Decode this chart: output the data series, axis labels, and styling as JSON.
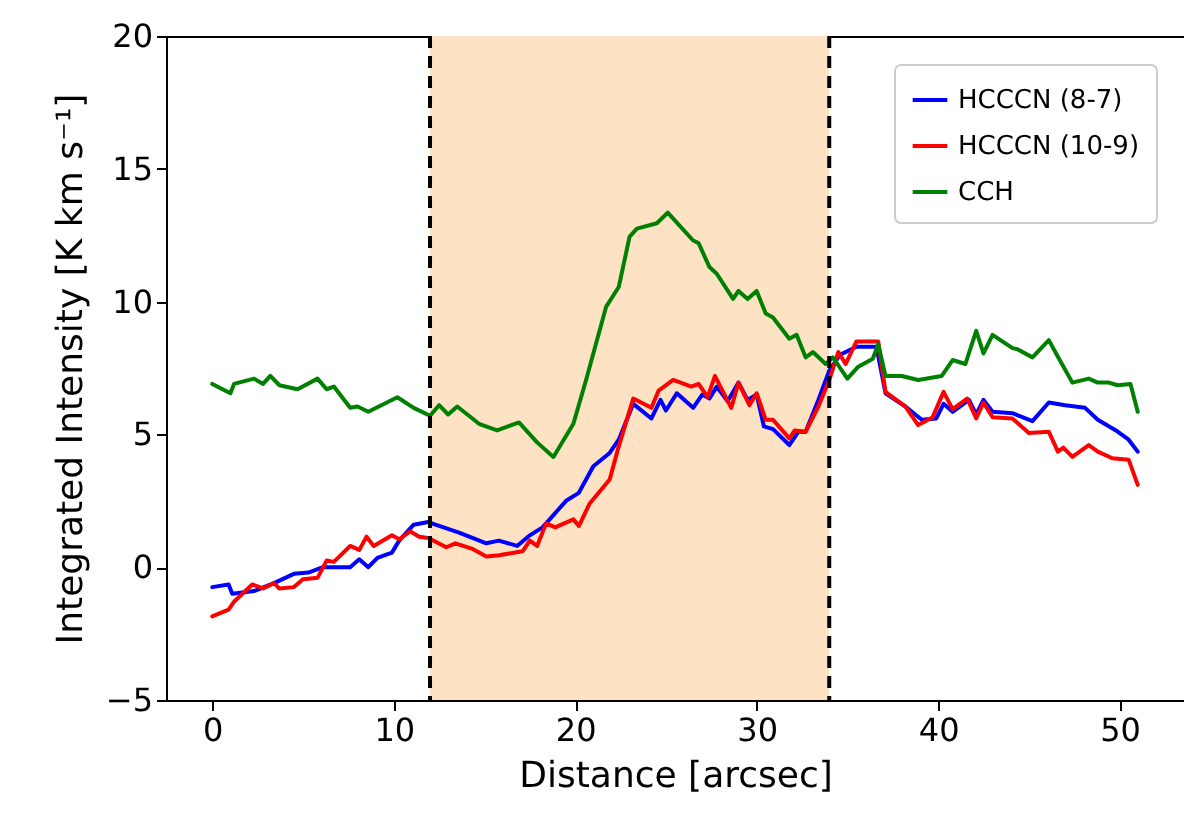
{
  "chart_data": {
    "type": "line",
    "xlabel": "Distance [arcsec]",
    "ylabel": "Integrated Intensity [K km s⁻¹]",
    "xlim": [
      -2.55,
      53.55
    ],
    "xticks": [
      0,
      10,
      20,
      30,
      40,
      50
    ],
    "ylim": [
      -5,
      20
    ],
    "yticks": [
      -5,
      0,
      5,
      10,
      15,
      20
    ],
    "grid": false,
    "legend": "top right",
    "bands": [
      {
        "axis": "x",
        "from": 12,
        "to": 34,
        "color": "#fde3c4"
      }
    ],
    "ref_lines": [
      {
        "axis": "x",
        "value": 12,
        "color": "#000000",
        "line_style": "dashed"
      },
      {
        "axis": "x",
        "value": 34,
        "color": "#000000",
        "line_style": "dashed"
      }
    ],
    "series": [
      {
        "name": "HCCCN (8-7)",
        "color": "#0000ff",
        "x": [
          0,
          0.9,
          1.1,
          2.3,
          3.4,
          4.5,
          5.3,
          6.1,
          7.6,
          8.1,
          8.6,
          9.1,
          9.9,
          10.3,
          11.1,
          11.9,
          12.3,
          13.6,
          15.1,
          15.8,
          16.8,
          17.5,
          18.2,
          19.5,
          20.2,
          21.0,
          21.9,
          22.4,
          23.2,
          24.2,
          24.7,
          25.0,
          25.6,
          26.5,
          27.0,
          27.4,
          27.8,
          28.4,
          29.0,
          29.5,
          30.0,
          30.4,
          30.9,
          31.8,
          32.3,
          32.7,
          33.4,
          34.0,
          34.6,
          35.5,
          36.6,
          37.1,
          38.2,
          39.1,
          39.9,
          40.3,
          40.8,
          41.7,
          42.1,
          42.5,
          43.0,
          44.1,
          45.2,
          46.1,
          47.0,
          48.1,
          48.8,
          49.8,
          50.5,
          51.0
        ],
        "values": [
          -0.75,
          -0.65,
          -1.0,
          -0.9,
          -0.6,
          -0.25,
          -0.2,
          0.0,
          0.0,
          0.3,
          0.0,
          0.35,
          0.55,
          1.0,
          1.6,
          1.7,
          1.6,
          1.3,
          0.9,
          1.0,
          0.8,
          1.2,
          1.5,
          2.5,
          2.8,
          3.8,
          4.3,
          4.8,
          6.15,
          5.6,
          6.3,
          5.9,
          6.55,
          6.0,
          6.5,
          6.35,
          6.8,
          6.25,
          6.95,
          6.3,
          6.5,
          5.3,
          5.2,
          4.6,
          5.1,
          5.1,
          6.3,
          7.4,
          8.0,
          8.3,
          8.3,
          6.55,
          6.05,
          5.55,
          5.6,
          6.15,
          5.85,
          6.3,
          5.75,
          6.3,
          5.85,
          5.8,
          5.5,
          6.2,
          6.1,
          6.0,
          5.55,
          5.15,
          4.8,
          4.35
        ]
      },
      {
        "name": "HCCCN (10-9)",
        "color": "#ff0000",
        "x": [
          0,
          0.9,
          1.2,
          2.2,
          2.8,
          3.4,
          3.7,
          4.5,
          5.0,
          5.8,
          6.3,
          6.7,
          7.6,
          8.1,
          8.5,
          8.9,
          9.9,
          10.3,
          10.9,
          11.4,
          11.9,
          12.9,
          13.4,
          14.3,
          15.1,
          15.8,
          17.1,
          17.5,
          17.9,
          18.4,
          18.9,
          19.9,
          20.2,
          20.8,
          21.9,
          22.4,
          23.2,
          24.2,
          24.6,
          25.4,
          26.4,
          26.8,
          27.3,
          27.7,
          28.6,
          29.0,
          29.6,
          30.0,
          30.5,
          30.9,
          31.8,
          32.1,
          32.7,
          33.4,
          34.0,
          34.5,
          34.9,
          35.5,
          36.7,
          37.1,
          38.2,
          38.9,
          39.7,
          40.3,
          40.8,
          41.6,
          42.1,
          42.5,
          43.0,
          44.1,
          45.0,
          46.1,
          46.6,
          46.9,
          47.4,
          48.3,
          48.8,
          49.6,
          50.5,
          51.0
        ],
        "values": [
          -1.85,
          -1.6,
          -1.3,
          -0.65,
          -0.8,
          -0.6,
          -0.8,
          -0.75,
          -0.45,
          -0.4,
          0.25,
          0.2,
          0.8,
          0.65,
          1.15,
          0.8,
          1.2,
          1.05,
          1.35,
          1.15,
          1.1,
          0.75,
          0.9,
          0.7,
          0.4,
          0.45,
          0.6,
          1.0,
          0.8,
          1.65,
          1.5,
          1.8,
          1.55,
          2.4,
          3.3,
          4.55,
          6.35,
          6.0,
          6.65,
          7.05,
          6.8,
          6.9,
          6.4,
          7.2,
          6.0,
          6.95,
          6.1,
          6.55,
          5.55,
          5.55,
          4.85,
          5.15,
          5.1,
          6.05,
          7.05,
          8.1,
          7.65,
          8.5,
          8.5,
          6.6,
          6.05,
          5.35,
          5.65,
          6.6,
          5.95,
          6.35,
          5.6,
          6.2,
          5.65,
          5.6,
          5.05,
          5.1,
          4.35,
          4.5,
          4.15,
          4.6,
          4.35,
          4.1,
          4.05,
          3.1
        ]
      },
      {
        "name": "CCH",
        "color": "#008000",
        "x": [
          0,
          1.0,
          1.2,
          2.3,
          2.8,
          3.2,
          3.7,
          4.7,
          5.8,
          6.3,
          6.7,
          7.6,
          8.0,
          8.6,
          10.2,
          11.1,
          12.0,
          12.5,
          13.0,
          13.5,
          14.7,
          15.7,
          16.9,
          17.9,
          18.8,
          19.9,
          20.6,
          21.7,
          22.4,
          23.0,
          23.4,
          24.5,
          25.1,
          26.5,
          26.8,
          27.4,
          27.8,
          28.7,
          29.0,
          29.5,
          30.0,
          30.5,
          30.9,
          31.8,
          32.2,
          32.7,
          33.1,
          33.8,
          34.2,
          35.0,
          35.6,
          36.4,
          36.7,
          37.1,
          38.0,
          38.9,
          40.2,
          40.8,
          41.5,
          42.1,
          42.5,
          43.0,
          44.1,
          44.4,
          45.2,
          46.1,
          46.7,
          47.4,
          48.3,
          48.8,
          49.4,
          49.9,
          50.6,
          51.0
        ],
        "values": [
          6.9,
          6.55,
          6.9,
          7.1,
          6.9,
          7.2,
          6.85,
          6.7,
          7.1,
          6.7,
          6.8,
          6.0,
          6.05,
          5.85,
          6.4,
          6.0,
          5.7,
          6.1,
          5.75,
          6.05,
          5.4,
          5.15,
          5.45,
          4.7,
          4.15,
          5.4,
          7.05,
          9.8,
          10.55,
          12.45,
          12.75,
          12.95,
          13.35,
          12.3,
          12.2,
          11.3,
          11.05,
          10.1,
          10.4,
          10.1,
          10.4,
          9.55,
          9.4,
          8.6,
          8.75,
          7.9,
          8.1,
          7.65,
          7.9,
          7.1,
          7.55,
          7.85,
          8.4,
          7.2,
          7.2,
          7.05,
          7.2,
          7.8,
          7.65,
          8.9,
          8.05,
          8.75,
          8.25,
          8.2,
          7.9,
          8.55,
          7.8,
          6.95,
          7.1,
          6.95,
          6.95,
          6.85,
          6.9,
          5.85
        ]
      }
    ]
  }
}
